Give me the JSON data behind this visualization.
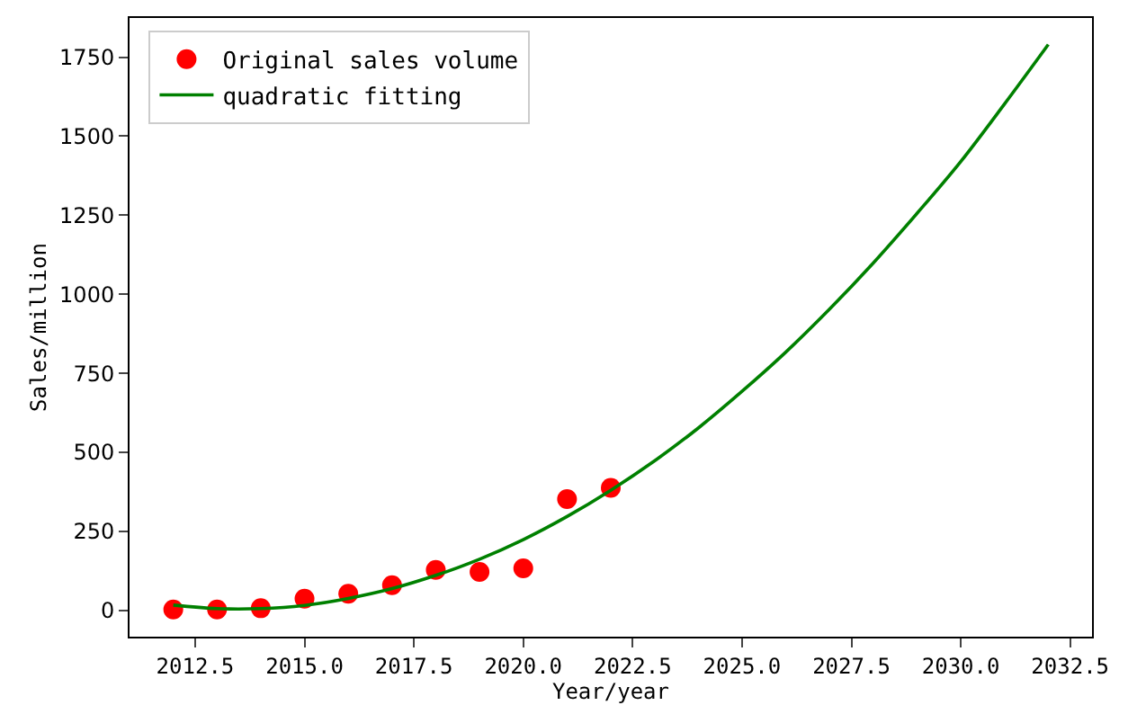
{
  "chart_data": {
    "type": "scatter",
    "xlabel": "Year/year",
    "ylabel": "Sales/million",
    "xlim": [
      2011,
      2033
    ],
    "ylim": [
      -83,
      1874
    ],
    "xticks": [
      {
        "value": 2012.5,
        "label": "2012.5"
      },
      {
        "value": 2015,
        "label": "2015.0"
      },
      {
        "value": 2017.5,
        "label": "2017.5"
      },
      {
        "value": 2020,
        "label": "2020.0"
      },
      {
        "value": 2022.5,
        "label": "2022.5"
      },
      {
        "value": 2025,
        "label": "2025.0"
      },
      {
        "value": 2027.5,
        "label": "2027.5"
      },
      {
        "value": 2030,
        "label": "2030.0"
      },
      {
        "value": 2032.5,
        "label": "2032.5"
      }
    ],
    "yticks": [
      0,
      250,
      500,
      750,
      1000,
      1250,
      1500,
      1750
    ],
    "legend": "top left",
    "series": [
      {
        "name": "Original sales volume",
        "marker": "circle",
        "color": "#ff0000",
        "x": [
          2012,
          2013,
          2014,
          2015,
          2016,
          2017,
          2018,
          2019,
          2020,
          2021,
          2022
        ],
        "values": [
          3,
          3,
          7,
          37,
          53,
          80,
          128,
          122,
          133,
          352,
          388
        ]
      },
      {
        "name": "quadratic fitting",
        "type": "line",
        "marker": "none",
        "line_style": "solid",
        "color": "#008000",
        "x": [
          2012,
          2013,
          2014,
          2015,
          2016,
          2017,
          2018,
          2019,
          2020,
          2021,
          2022,
          2023,
          2024,
          2025,
          2026,
          2027,
          2028,
          2029,
          2030,
          2031,
          2032
        ],
        "values": [
          17,
          6,
          6,
          16,
          38,
          69,
          111,
          162,
          224,
          297,
          380,
          473,
          577,
          693,
          817,
          953,
          1099,
          1256,
          1420,
          1602,
          1790
        ]
      }
    ]
  }
}
